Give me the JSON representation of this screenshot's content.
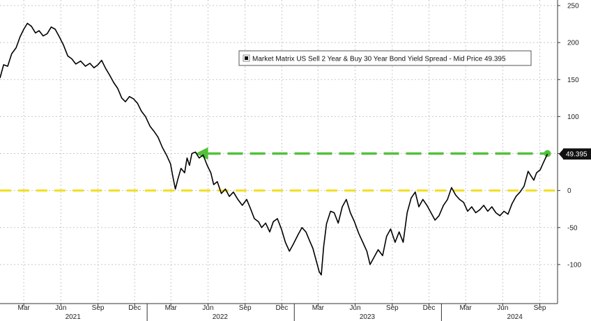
{
  "chart_data": {
    "type": "line",
    "title": "",
    "xlabel": "",
    "ylabel": "",
    "ylim": [
      -150,
      250
    ],
    "y_ticks": [
      -100,
      -50,
      0,
      50,
      100,
      150,
      200,
      250
    ],
    "y_tick_labels": [
      "-100",
      "-50",
      "0",
      "50",
      "100",
      "150",
      "200",
      "250"
    ],
    "x_range": [
      "2021-01-01",
      "2024-10-15"
    ],
    "x_ticks": [
      {
        "date": "2021-03-01",
        "label": "Mar"
      },
      {
        "date": "2021-06-01",
        "label": "Jun"
      },
      {
        "date": "2021-09-01",
        "label": "Sep"
      },
      {
        "date": "2021-12-01",
        "label": "Dec"
      },
      {
        "date": "2022-03-01",
        "label": "Mar"
      },
      {
        "date": "2022-06-01",
        "label": "Jun"
      },
      {
        "date": "2022-09-01",
        "label": "Sep"
      },
      {
        "date": "2022-12-01",
        "label": "Dec"
      },
      {
        "date": "2023-03-01",
        "label": "Mar"
      },
      {
        "date": "2023-06-01",
        "label": "Jun"
      },
      {
        "date": "2023-09-01",
        "label": "Sep"
      },
      {
        "date": "2023-12-01",
        "label": "Dec"
      },
      {
        "date": "2024-03-01",
        "label": "Mar"
      },
      {
        "date": "2024-06-01",
        "label": "Jun"
      },
      {
        "date": "2024-09-01",
        "label": "Sep"
      }
    ],
    "years": [
      {
        "date": "2021-07-01",
        "label": "2021"
      },
      {
        "date": "2022-07-01",
        "label": "2022"
      },
      {
        "date": "2023-07-01",
        "label": "2023"
      },
      {
        "date": "2024-07-01",
        "label": "2024"
      }
    ],
    "year_separators": [
      "2022-01-01",
      "2023-01-01",
      "2024-01-01"
    ],
    "grid": true,
    "legend": {
      "position": "top-right",
      "label": "Market Matrix US Sell 2 Year & Buy 30 Year Bond Yield Spread - Mid Price 49.395"
    },
    "last_value_label": "49.395",
    "reference_lines": [
      {
        "name": "zero",
        "y": 0,
        "color": "#f2df1f",
        "style": "dashed"
      },
      {
        "name": "prior-peak",
        "y": 50,
        "from": "2022-05-01",
        "to": "2024-09-20",
        "color": "#52c13a",
        "style": "dashed-arrow"
      }
    ],
    "series": [
      {
        "name": "Market Matrix US Sell 2 Year & Buy 30 Year Bond Yield Spread - Mid Price",
        "color": "#000000",
        "points": [
          [
            "2021-01-01",
            152
          ],
          [
            "2021-01-10",
            170
          ],
          [
            "2021-01-20",
            168
          ],
          [
            "2021-01-30",
            185
          ],
          [
            "2021-02-10",
            193
          ],
          [
            "2021-02-20",
            208
          ],
          [
            "2021-03-01",
            218
          ],
          [
            "2021-03-10",
            226
          ],
          [
            "2021-03-20",
            222
          ],
          [
            "2021-03-30",
            213
          ],
          [
            "2021-04-08",
            216
          ],
          [
            "2021-04-18",
            209
          ],
          [
            "2021-04-28",
            212
          ],
          [
            "2021-05-08",
            221
          ],
          [
            "2021-05-18",
            218
          ],
          [
            "2021-05-28",
            208
          ],
          [
            "2021-06-08",
            196
          ],
          [
            "2021-06-18",
            182
          ],
          [
            "2021-06-28",
            178
          ],
          [
            "2021-07-08",
            171
          ],
          [
            "2021-07-20",
            175
          ],
          [
            "2021-08-01",
            168
          ],
          [
            "2021-08-12",
            172
          ],
          [
            "2021-08-22",
            166
          ],
          [
            "2021-09-01",
            170
          ],
          [
            "2021-09-10",
            176
          ],
          [
            "2021-09-20",
            165
          ],
          [
            "2021-09-30",
            156
          ],
          [
            "2021-10-10",
            146
          ],
          [
            "2021-10-20",
            138
          ],
          [
            "2021-10-30",
            125
          ],
          [
            "2021-11-08",
            120
          ],
          [
            "2021-11-18",
            127
          ],
          [
            "2021-11-28",
            124
          ],
          [
            "2021-12-08",
            118
          ],
          [
            "2021-12-18",
            107
          ],
          [
            "2021-12-28",
            100
          ],
          [
            "2022-01-08",
            87
          ],
          [
            "2022-01-18",
            80
          ],
          [
            "2022-01-28",
            72
          ],
          [
            "2022-02-08",
            58
          ],
          [
            "2022-02-18",
            48
          ],
          [
            "2022-02-28",
            36
          ],
          [
            "2022-03-06",
            18
          ],
          [
            "2022-03-12",
            2
          ],
          [
            "2022-03-18",
            15
          ],
          [
            "2022-03-26",
            30
          ],
          [
            "2022-04-04",
            24
          ],
          [
            "2022-04-10",
            44
          ],
          [
            "2022-04-16",
            34
          ],
          [
            "2022-04-22",
            50
          ],
          [
            "2022-05-01",
            52
          ],
          [
            "2022-05-10",
            44
          ],
          [
            "2022-05-20",
            48
          ],
          [
            "2022-05-30",
            34
          ],
          [
            "2022-06-08",
            24
          ],
          [
            "2022-06-15",
            8
          ],
          [
            "2022-06-24",
            12
          ],
          [
            "2022-07-04",
            -4
          ],
          [
            "2022-07-14",
            2
          ],
          [
            "2022-07-24",
            -8
          ],
          [
            "2022-08-03",
            -2
          ],
          [
            "2022-08-14",
            -12
          ],
          [
            "2022-08-25",
            -20
          ],
          [
            "2022-09-05",
            -12
          ],
          [
            "2022-09-14",
            -24
          ],
          [
            "2022-09-24",
            -38
          ],
          [
            "2022-10-04",
            -42
          ],
          [
            "2022-10-12",
            -50
          ],
          [
            "2022-10-22",
            -44
          ],
          [
            "2022-11-01",
            -56
          ],
          [
            "2022-11-10",
            -42
          ],
          [
            "2022-11-20",
            -38
          ],
          [
            "2022-11-30",
            -52
          ],
          [
            "2022-12-10",
            -70
          ],
          [
            "2022-12-20",
            -82
          ],
          [
            "2022-12-30",
            -72
          ],
          [
            "2023-01-10",
            -60
          ],
          [
            "2023-01-20",
            -50
          ],
          [
            "2023-01-30",
            -56
          ],
          [
            "2023-02-08",
            -68
          ],
          [
            "2023-02-16",
            -78
          ],
          [
            "2023-02-24",
            -94
          ],
          [
            "2023-03-04",
            -110
          ],
          [
            "2023-03-09",
            -114
          ],
          [
            "2023-03-15",
            -75
          ],
          [
            "2023-03-22",
            -45
          ],
          [
            "2023-04-01",
            -28
          ],
          [
            "2023-04-10",
            -30
          ],
          [
            "2023-04-20",
            -44
          ],
          [
            "2023-04-30",
            -22
          ],
          [
            "2023-05-10",
            -12
          ],
          [
            "2023-05-20",
            -30
          ],
          [
            "2023-05-30",
            -42
          ],
          [
            "2023-06-10",
            -58
          ],
          [
            "2023-06-20",
            -70
          ],
          [
            "2023-06-30",
            -82
          ],
          [
            "2023-07-08",
            -100
          ],
          [
            "2023-07-18",
            -90
          ],
          [
            "2023-07-28",
            -80
          ],
          [
            "2023-08-08",
            -88
          ],
          [
            "2023-08-18",
            -62
          ],
          [
            "2023-08-28",
            -52
          ],
          [
            "2023-09-08",
            -70
          ],
          [
            "2023-09-18",
            -56
          ],
          [
            "2023-09-28",
            -70
          ],
          [
            "2023-10-08",
            -30
          ],
          [
            "2023-10-18",
            -10
          ],
          [
            "2023-10-28",
            -2
          ],
          [
            "2023-11-06",
            -22
          ],
          [
            "2023-11-16",
            -12
          ],
          [
            "2023-11-26",
            -20
          ],
          [
            "2023-12-06",
            -30
          ],
          [
            "2023-12-16",
            -40
          ],
          [
            "2023-12-26",
            -34
          ],
          [
            "2024-01-06",
            -20
          ],
          [
            "2024-01-16",
            -12
          ],
          [
            "2024-01-26",
            4
          ],
          [
            "2024-02-05",
            -6
          ],
          [
            "2024-02-15",
            -12
          ],
          [
            "2024-02-25",
            -16
          ],
          [
            "2024-03-06",
            -28
          ],
          [
            "2024-03-16",
            -22
          ],
          [
            "2024-03-26",
            -30
          ],
          [
            "2024-04-05",
            -26
          ],
          [
            "2024-04-15",
            -20
          ],
          [
            "2024-04-25",
            -28
          ],
          [
            "2024-05-05",
            -22
          ],
          [
            "2024-05-15",
            -30
          ],
          [
            "2024-05-25",
            -34
          ],
          [
            "2024-06-04",
            -28
          ],
          [
            "2024-06-14",
            -32
          ],
          [
            "2024-06-24",
            -18
          ],
          [
            "2024-07-04",
            -8
          ],
          [
            "2024-07-14",
            -2
          ],
          [
            "2024-07-24",
            6
          ],
          [
            "2024-08-03",
            26
          ],
          [
            "2024-08-10",
            20
          ],
          [
            "2024-08-17",
            14
          ],
          [
            "2024-08-24",
            24
          ],
          [
            "2024-09-02",
            28
          ],
          [
            "2024-09-10",
            38
          ],
          [
            "2024-09-20",
            49.395
          ]
        ]
      }
    ]
  }
}
